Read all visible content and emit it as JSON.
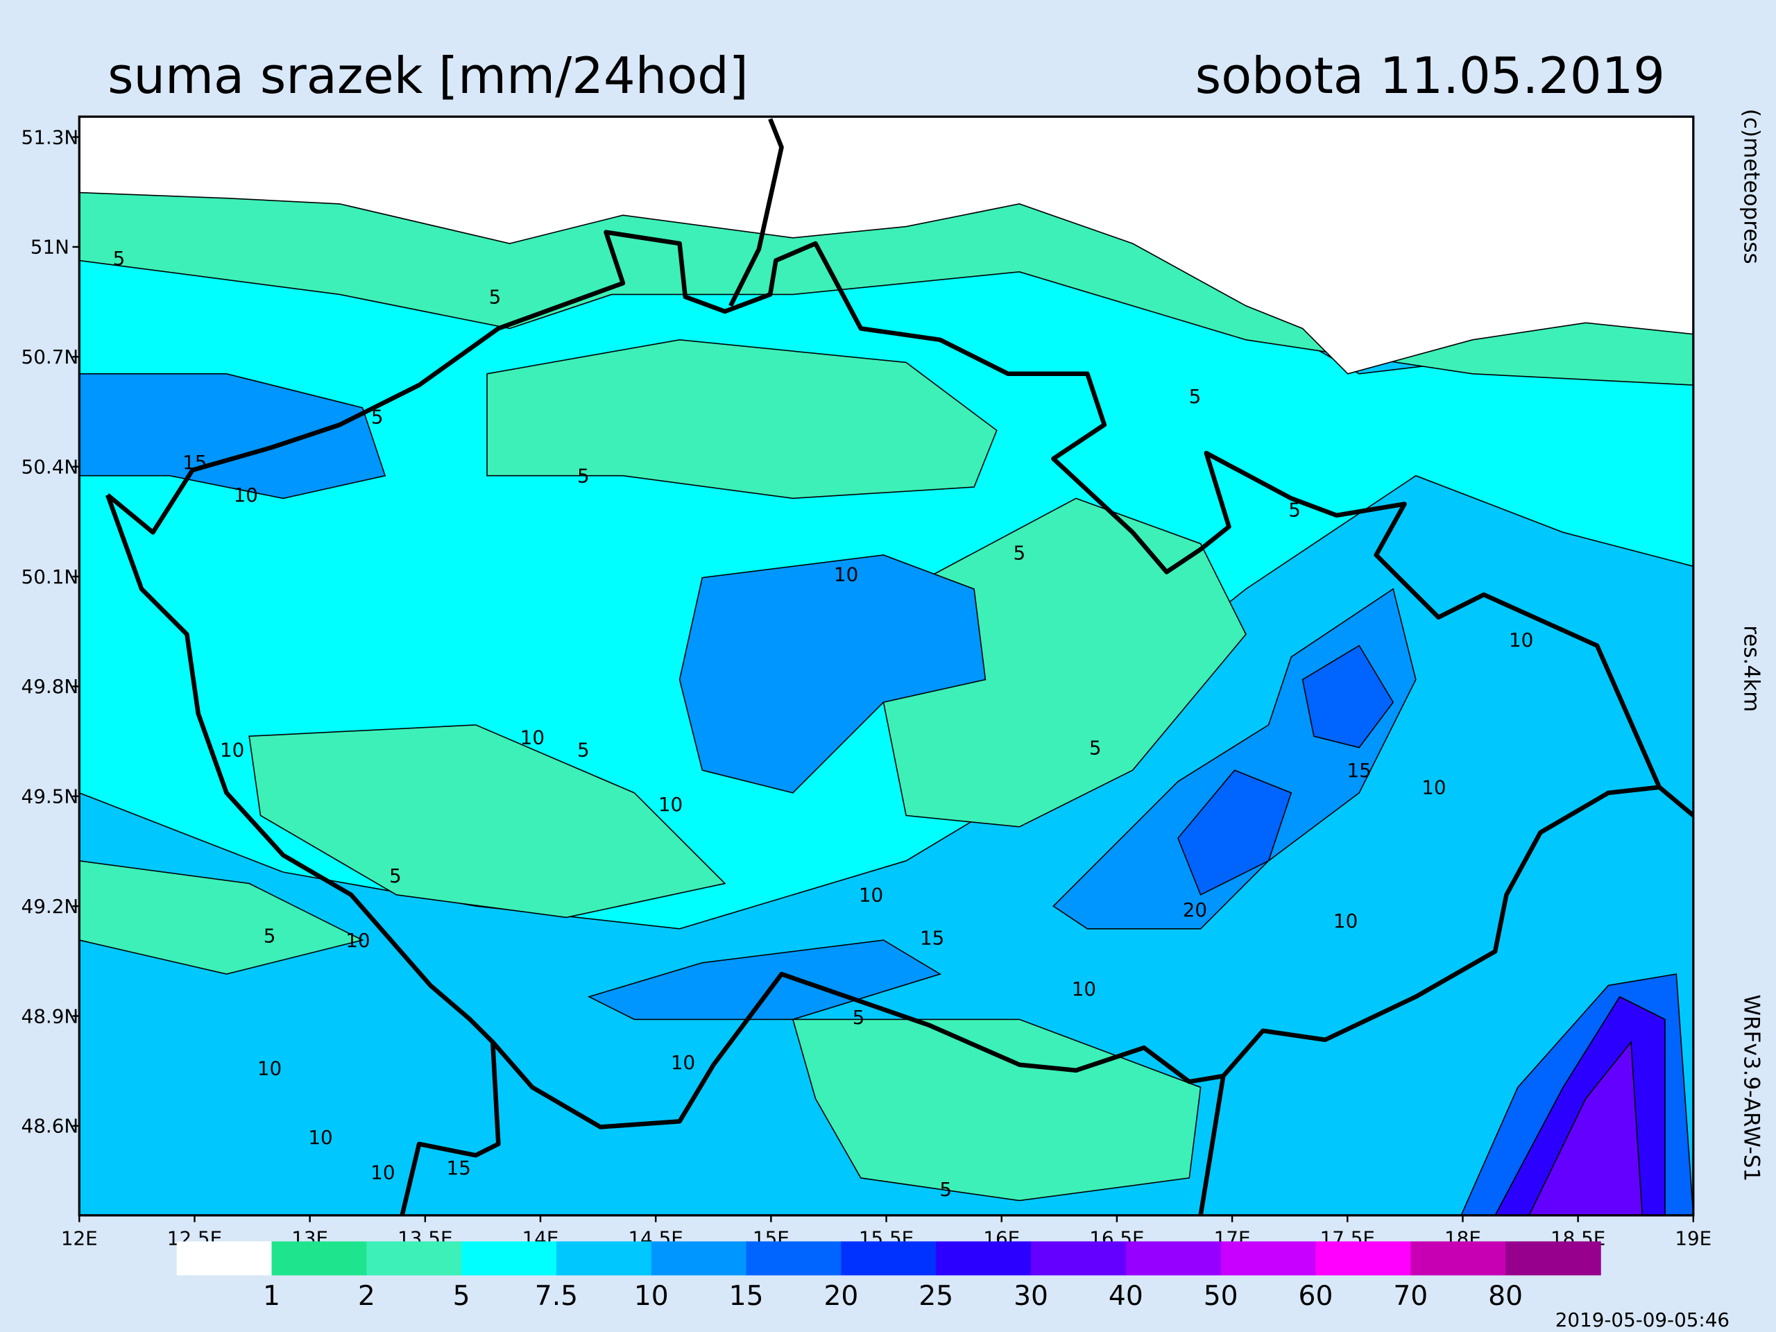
{
  "header": {
    "title": "suma srazek [mm/24hod]",
    "date": "sobota 11.05.2019"
  },
  "lat_labels": [
    "51.3N",
    "51N",
    "50.7N",
    "50.4N",
    "50.1N",
    "49.8N",
    "49.5N",
    "49.2N",
    "48.9N",
    "48.6N"
  ],
  "lon_labels": [
    "12E",
    "12.5E",
    "13E",
    "13.5E",
    "14E",
    "14.5E",
    "15E",
    "15.5E",
    "16E",
    "16.5E",
    "17E",
    "17.5E",
    "18E",
    "18.5E",
    "19E"
  ],
  "side_labels": {
    "copyright": "(c)meteopress",
    "resolution": "res.4km",
    "model": "WRFv3.9-ARW-S1"
  },
  "legend": {
    "colors": [
      "#ffffff",
      "#1ee48e",
      "#3cf0b8",
      "#00ffff",
      "#00c8ff",
      "#0096ff",
      "#0064ff",
      "#0032ff",
      "#2c00ff",
      "#6400ff",
      "#9600ff",
      "#c800ff",
      "#ff00ff",
      "#c800b4",
      "#96008c"
    ],
    "labels": [
      1,
      2,
      5,
      7.5,
      10,
      15,
      20,
      25,
      30,
      40,
      50,
      60,
      70,
      80
    ]
  },
  "contour_labels": [
    "5",
    "5",
    "5",
    "15",
    "10",
    "5",
    "10",
    "5",
    "5",
    "5",
    "10",
    "10",
    "10",
    "5",
    "10",
    "5",
    "15",
    "10",
    "5",
    "10",
    "5",
    "10",
    "15",
    "20",
    "10",
    "10",
    "5",
    "10",
    "10",
    "10",
    "10",
    "15",
    "5"
  ],
  "timestamp": "2019-05-09-05:46"
}
